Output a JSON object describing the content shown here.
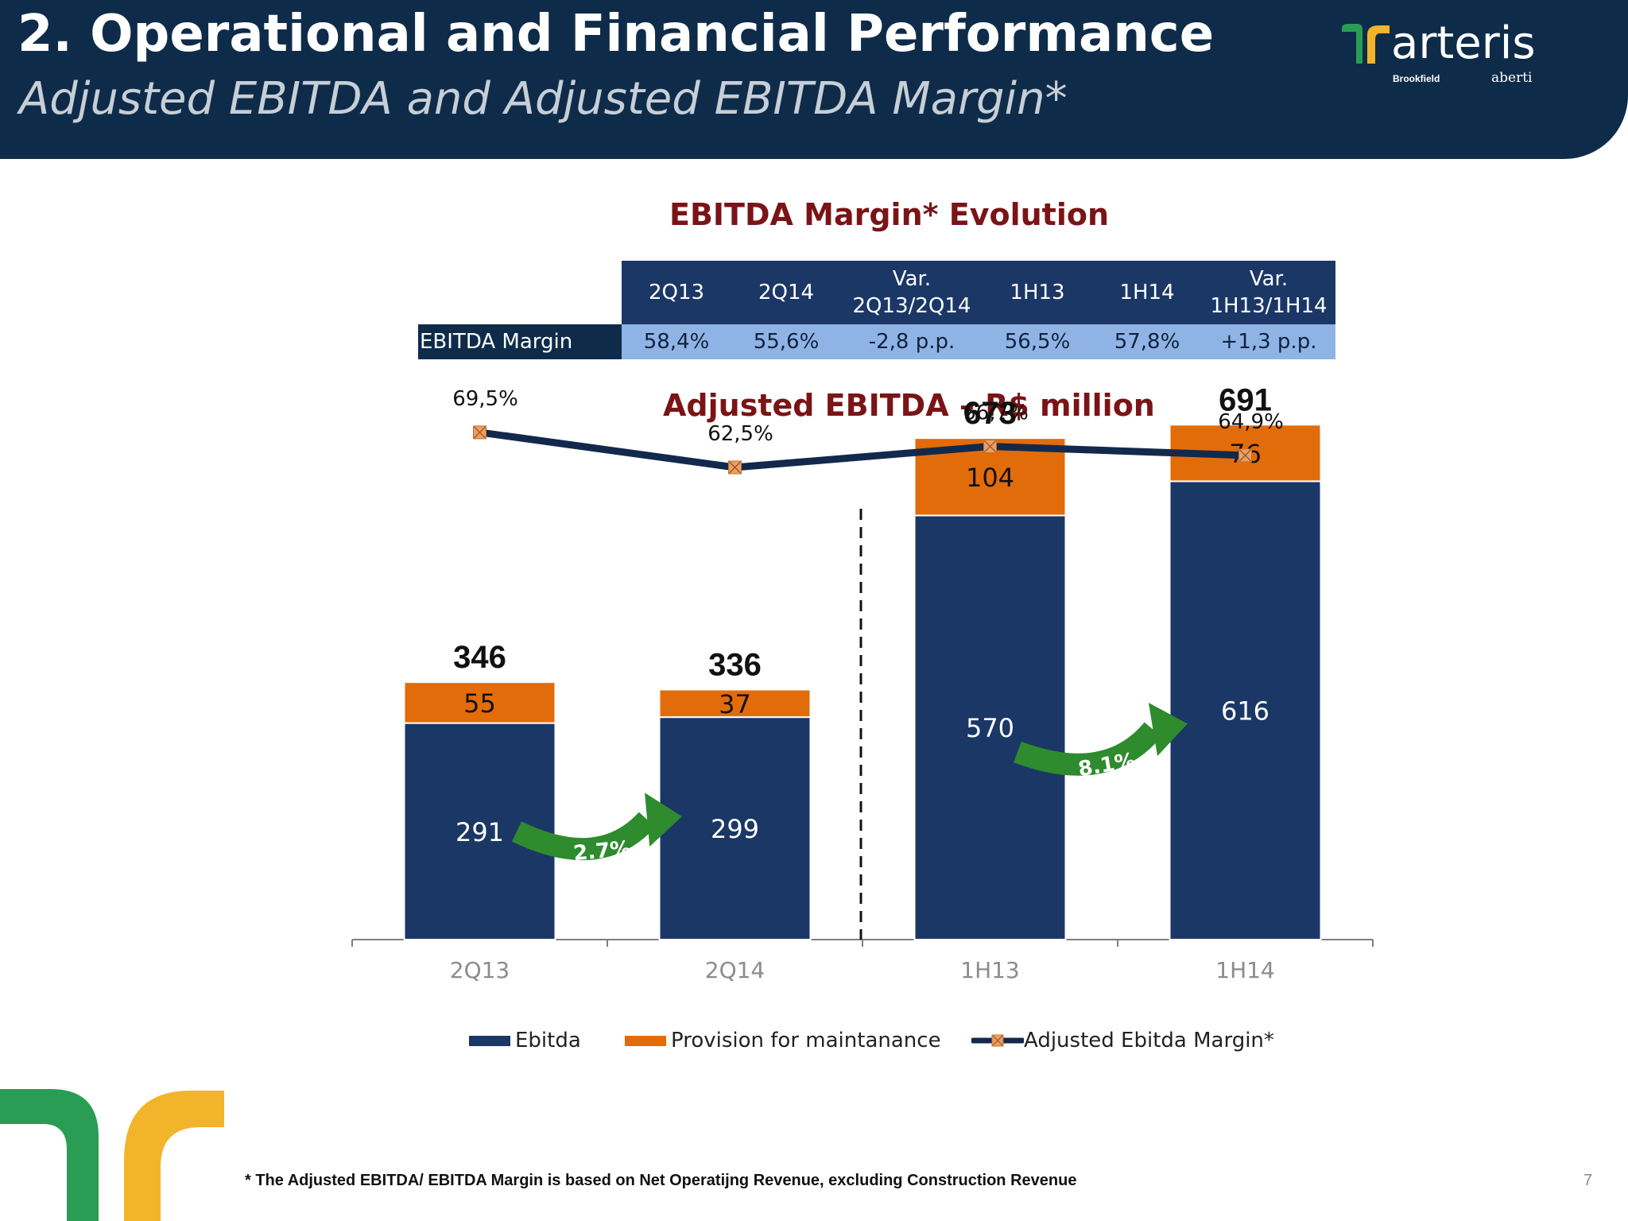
{
  "header": {
    "title": "2. Operational and Financial Performance",
    "subtitle": "Adjusted EBITDA and Adjusted EBITDA Margin*"
  },
  "logo": {
    "brand": "arteris",
    "partner1": "Brookfield",
    "partner2": "aberti"
  },
  "margin_table": {
    "title": "EBITDA Margin* Evolution",
    "headers": [
      {
        "line1": "2Q13",
        "line2": ""
      },
      {
        "line1": "2Q14",
        "line2": ""
      },
      {
        "line1": "Var.",
        "line2": "2Q13/2Q14"
      },
      {
        "line1": "1H13",
        "line2": ""
      },
      {
        "line1": "1H14",
        "line2": ""
      },
      {
        "line1": "Var.",
        "line2": "1H13/1H14"
      }
    ],
    "row_label": "EBITDA Margin",
    "values": [
      "58,4%",
      "55,6%",
      "-2,8 p.p.",
      "56,5%",
      "57,8%",
      "+1,3 p.p."
    ]
  },
  "chart_data": {
    "type": "bar",
    "stacked": true,
    "title": "Adjusted EBITDA – R$ million",
    "categories": [
      "2Q13",
      "2Q14",
      "1H13",
      "1H14"
    ],
    "series": [
      {
        "name": "Ebitda",
        "color": "#1b3766",
        "values": [
          291,
          299,
          570,
          616
        ],
        "labels": [
          "291",
          "299",
          "570",
          "616"
        ]
      },
      {
        "name": "Provision for maintanance",
        "color": "#e36c0a",
        "values": [
          55,
          37,
          104,
          76
        ],
        "labels": [
          "55",
          "37",
          "104",
          "76"
        ]
      }
    ],
    "totals": [
      346,
      336,
      673,
      691
    ],
    "total_labels": [
      "346",
      "336",
      "673",
      "691"
    ],
    "line_series": {
      "name": "Adjusted Ebitda Margin*",
      "color": "#13294b",
      "marker_color": "#e9a066",
      "values": [
        69.5,
        62.5,
        66.7,
        64.9
      ],
      "labels": [
        "69,5%",
        "62,5%",
        "66,7%",
        "64,9%"
      ]
    },
    "growth_arrows": [
      {
        "from": "2Q13",
        "to": "2Q14",
        "label": "2.7%"
      },
      {
        "from": "1H13",
        "to": "1H14",
        "label": "8.1%"
      }
    ],
    "ylim": [
      0,
      700
    ],
    "divider_after": "2Q14",
    "legend_position": "bottom",
    "grid": false
  },
  "footnote": "* The Adjusted EBITDA/ EBITDA Margin is based on Net Operatijng Revenue, excluding Construction Revenue",
  "page_number": "7",
  "colors": {
    "header_bg": "#0e2c4a",
    "accent_red": "#7a1416",
    "ebitda": "#1b3766",
    "provision": "#e36c0a",
    "arrow_green": "#2e8b2e",
    "logo_green": "#2a9d55",
    "logo_yellow": "#f2b42a"
  }
}
